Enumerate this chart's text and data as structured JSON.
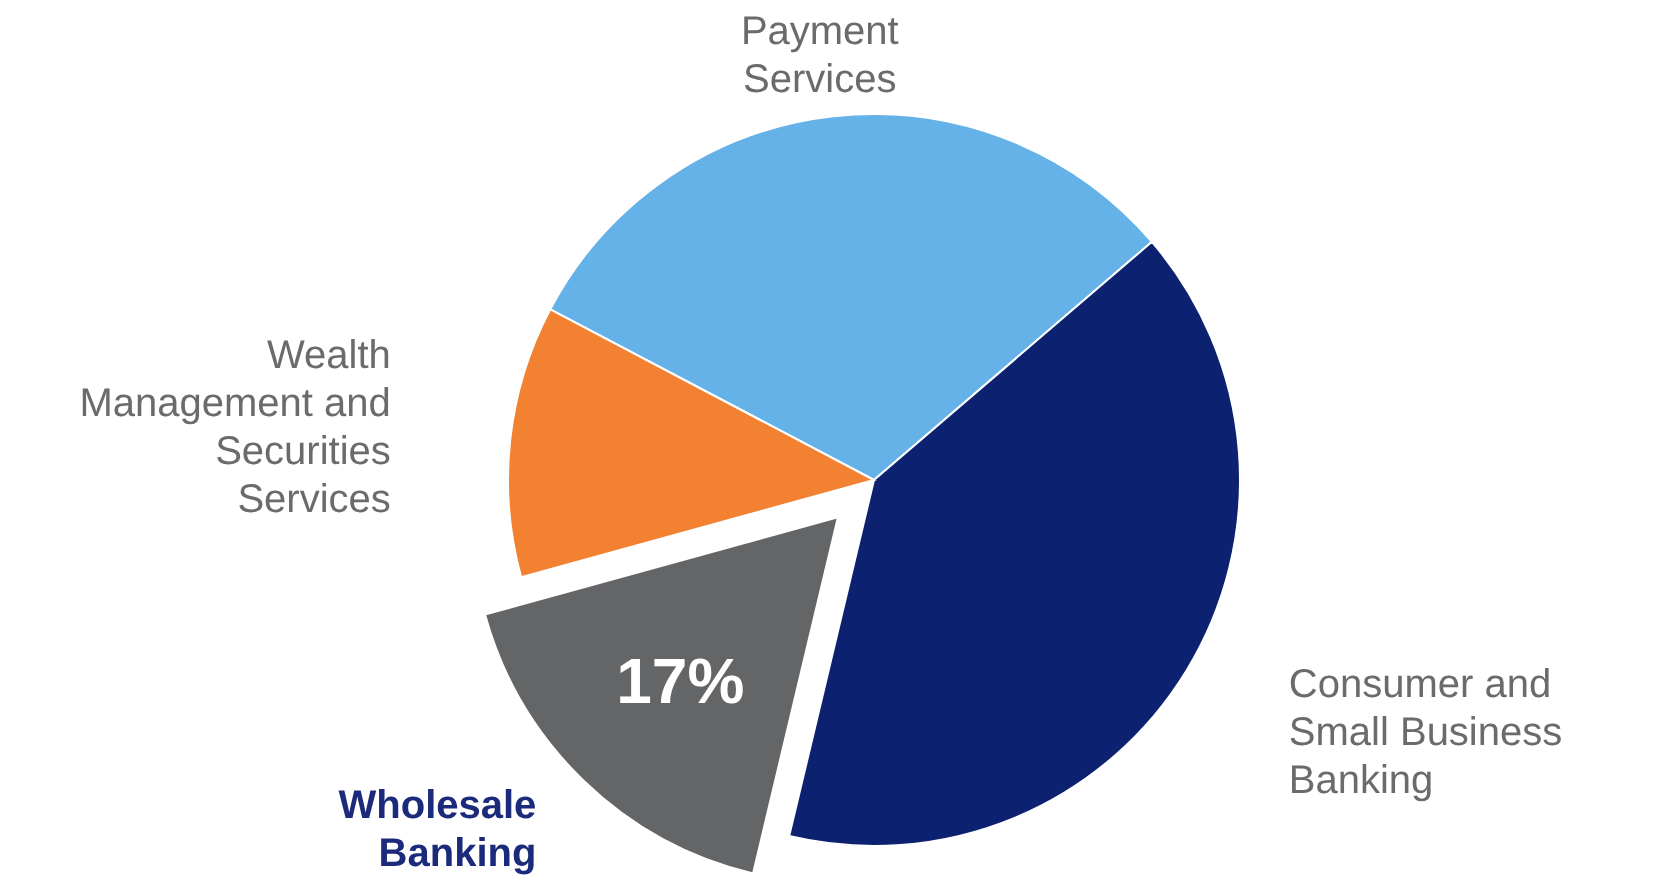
{
  "chart_data": {
    "type": "pie",
    "categories": [
      "Payment Services",
      "Consumer and Small Business Banking",
      "Wholesale Banking",
      "Wealth Management and Securities Services"
    ],
    "values": [
      31,
      40,
      17,
      12
    ],
    "colors": [
      "#65b2e8",
      "#0c2170",
      "#646567",
      "#f28131"
    ],
    "value_labels": [
      null,
      null,
      "17%",
      null
    ]
  }
}
